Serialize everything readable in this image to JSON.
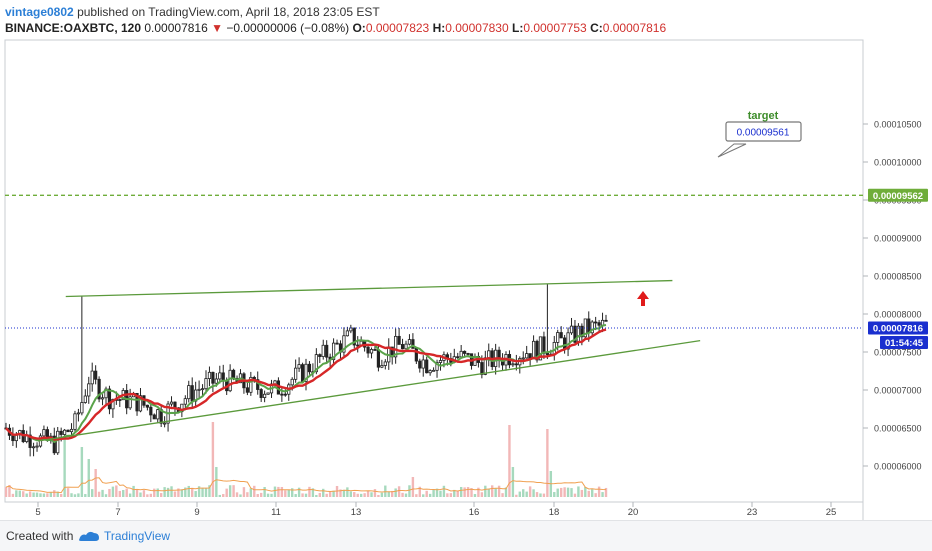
{
  "header": {
    "author": "vintage0802",
    "published": "published on TradingView.com, April 18, 2018 23:05 EST",
    "symbol": "BINANCE:OAXBTC, 120",
    "last": "0.00007816",
    "change": "−0.00000006 (−0.08%)",
    "open_label": "O:",
    "open": "0.00007823",
    "high_label": "H:",
    "high": "0.00007830",
    "low_label": "L:",
    "low": "0.00007753",
    "close_label": "C:",
    "close": "0.00007816"
  },
  "footer": {
    "created": "Created with",
    "brand": "TradingView"
  },
  "colors": {
    "ma_fast": "#d62728",
    "ma_slow": "#5aa34a",
    "trend": "#5b9a3c",
    "target_line": "#6fad3a",
    "price_tag": "#1a2fcf",
    "arrow": "#e01b1b",
    "volume_up": "#a6d9bd",
    "volume_down": "#f2b7b7",
    "volume_ma": "#f0a050"
  },
  "chart_data": {
    "type": "candlestick",
    "x_ticks": [
      "5",
      "7",
      "9",
      "11",
      "13",
      "16",
      "18",
      "20",
      "23",
      "25"
    ],
    "y_ticks": [
      "0.00006000",
      "0.00006500",
      "0.00007000",
      "0.00007500",
      "0.00008000",
      "0.00008500",
      "0.00009000",
      "0.00009500",
      "0.00010000",
      "0.00010500"
    ],
    "ylim": [
      5.57e-05,
      0.000111
    ],
    "price_label": "0.00007816",
    "countdown": "01:54:45",
    "target_label": "0.00009562",
    "target_value": 9.562e-05,
    "target_title": "target",
    "target_callout": "0.00009561",
    "trendline_upper": {
      "from": [
        "5.7",
        8.23e-05
      ],
      "to": [
        "21",
        8.44e-05
      ]
    },
    "trendline_lower": {
      "from": [
        "5",
        6.33e-05
      ],
      "to": [
        "21.7",
        7.65e-05
      ]
    },
    "wick_notes": {
      "day5_high": 8.23e-05,
      "day18_high": 8.4e-05
    },
    "x_range_days": [
      4.6,
      26.0
    ],
    "last_candle_day": 19.2
  }
}
